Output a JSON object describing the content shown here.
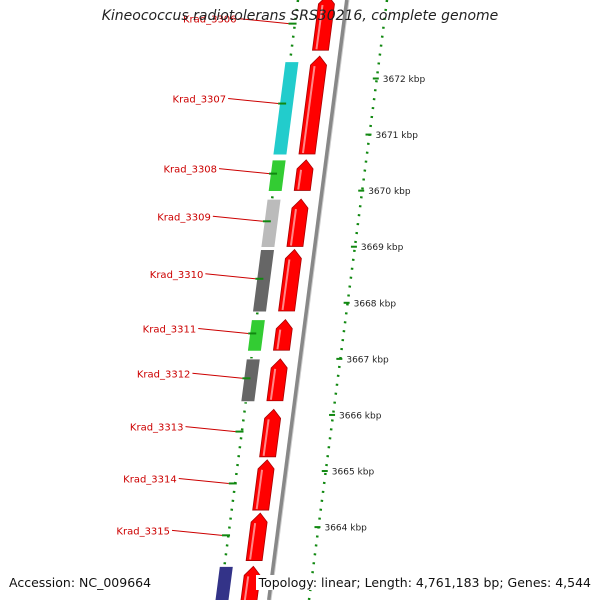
{
  "title": "Kineococcus radiotolerans SRS30216, complete genome",
  "accession": "Accession: NC_009664",
  "topology": "Topology: linear; Length: 4,761,183 bp; Genes: 4,544",
  "scale": {
    "top_kbp": 3673.4,
    "bottom_kbp": 3662.7,
    "ticks": [
      {
        "kbp": 3672,
        "label": "3672 kbp"
      },
      {
        "kbp": 3671,
        "label": "3671 kbp"
      },
      {
        "kbp": 3670,
        "label": "3670 kbp"
      },
      {
        "kbp": 3669,
        "label": "3669 kbp"
      },
      {
        "kbp": 3668,
        "label": "3668 kbp"
      },
      {
        "kbp": 3667,
        "label": "3667 kbp"
      },
      {
        "kbp": 3666,
        "label": "3666 kbp"
      },
      {
        "kbp": 3665,
        "label": "3665 kbp"
      },
      {
        "kbp": 3664,
        "label": "3664 kbp"
      }
    ]
  },
  "colors": {
    "label": "#cc0000",
    "cds": "#ff0000",
    "dots": "#118811",
    "backbone": "#888888"
  },
  "genes": [
    {
      "name": "Krad_3306",
      "start_kbp": 3673.5,
      "end_kbp": 3672.45
    },
    {
      "name": "Krad_3307",
      "start_kbp": 3672.4,
      "end_kbp": 3670.6
    },
    {
      "name": "Krad_3308",
      "start_kbp": 3670.55,
      "end_kbp": 3669.95
    },
    {
      "name": "Krad_3309",
      "start_kbp": 3669.85,
      "end_kbp": 3668.95
    },
    {
      "name": "Krad_3310",
      "start_kbp": 3668.95,
      "end_kbp": 3667.8
    },
    {
      "name": "Krad_3311",
      "start_kbp": 3667.7,
      "end_kbp": 3667.1
    },
    {
      "name": "Krad_3312",
      "start_kbp": 3667.0,
      "end_kbp": 3666.2
    },
    {
      "name": "Krad_3313",
      "start_kbp": 3666.1,
      "end_kbp": 3665.2
    },
    {
      "name": "Krad_3314",
      "start_kbp": 3665.2,
      "end_kbp": 3664.25
    },
    {
      "name": "Krad_3315",
      "start_kbp": 3664.25,
      "end_kbp": 3663.35
    },
    {
      "name": "",
      "start_kbp": 3663.3,
      "end_kbp": 3662.6
    }
  ],
  "features": [
    {
      "color": "#22cccc",
      "start_kbp": 3672.3,
      "end_kbp": 3670.6
    },
    {
      "color": "#33cc33",
      "start_kbp": 3670.55,
      "end_kbp": 3669.95
    },
    {
      "color": "#bbbbbb",
      "start_kbp": 3669.85,
      "end_kbp": 3668.95
    },
    {
      "color": "#666666",
      "start_kbp": 3668.95,
      "end_kbp": 3667.8
    },
    {
      "color": "#33cc33",
      "start_kbp": 3667.7,
      "end_kbp": 3667.1
    },
    {
      "color": "#666666",
      "start_kbp": 3667.0,
      "end_kbp": 3666.2
    },
    {
      "color": "#333388",
      "start_kbp": 3663.3,
      "end_kbp": 3662.6
    }
  ]
}
